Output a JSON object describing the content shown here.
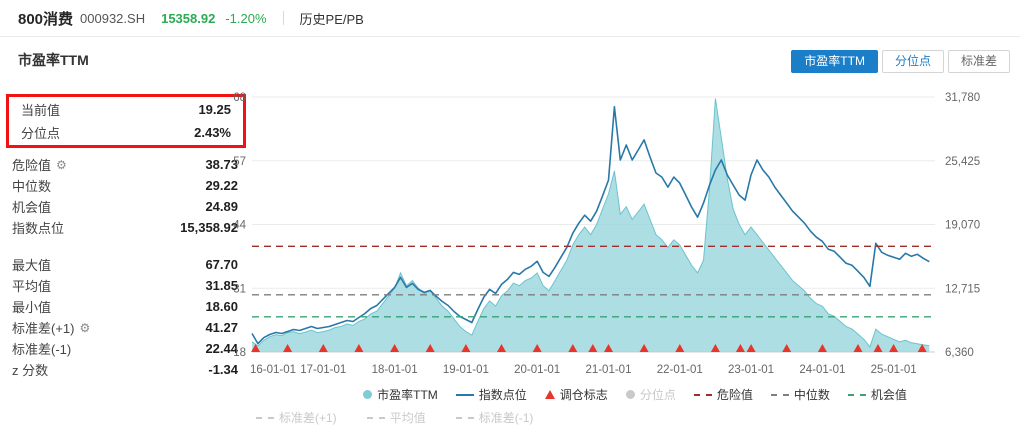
{
  "header": {
    "title": "800消费",
    "code": "000932.SH",
    "price": "15358.92",
    "change": "-1.20%",
    "nav": "历史PE/PB",
    "price_color": "#2bab52"
  },
  "panel": {
    "title": "市盈率TTM",
    "highlight_rows": [
      {
        "label": "当前值",
        "value": "19.25"
      },
      {
        "label": "分位点",
        "value": "2.43%"
      }
    ],
    "rows1": [
      {
        "label": "危险值",
        "value": "38.73"
      },
      {
        "label": "中位数",
        "value": "29.22"
      },
      {
        "label": "机会值",
        "value": "24.89"
      },
      {
        "label": "指数点位",
        "value": "15,358.92"
      }
    ],
    "rows2": [
      {
        "label": "最大值",
        "value": "67.70"
      },
      {
        "label": "平均值",
        "value": "31.85"
      },
      {
        "label": "最小值",
        "value": "18.60"
      },
      {
        "label": "标准差(+1)",
        "value": "41.27"
      },
      {
        "label": "标准差(-1)",
        "value": "22.44"
      },
      {
        "label": "z 分数",
        "value": "-1.34"
      }
    ],
    "highlight_border_color": "#f21212"
  },
  "toggles": [
    {
      "label": "市盈率TTM",
      "active": true
    },
    {
      "label": "分位点",
      "active": false
    },
    {
      "label": "标准差",
      "active": false
    }
  ],
  "chart_data": {
    "type": "line+area",
    "x_start": 2016,
    "x_end": 2025.58,
    "x_step": 0.08333,
    "x_ticks": [
      "16-01-01",
      "17-01-01",
      "18-01-01",
      "19-01-01",
      "20-01-01",
      "21-01-01",
      "22-01-01",
      "23-01-01",
      "24-01-01",
      "25-01-01"
    ],
    "left_axis": {
      "min": 18,
      "max": 68,
      "ticks": [
        "68",
        "57",
        "44",
        "31",
        "18"
      ]
    },
    "right_axis": {
      "min": 6360,
      "max": 31780,
      "ticks": [
        "31,780",
        "25,425",
        "19,070",
        "12,715",
        "6,360"
      ]
    },
    "series": [
      {
        "name": "市盈率TTM",
        "type": "area",
        "axis": "left",
        "color": "#6cc3cd",
        "fill": "rgba(151,214,221,0.8)",
        "values": [
          20,
          19.2,
          20.3,
          21,
          21.4,
          21.2,
          21.8,
          22,
          21.6,
          21.9,
          22.3,
          21.8,
          22,
          22.3,
          22.8,
          23,
          23.5,
          23.2,
          24,
          24.5,
          25.5,
          26,
          27.5,
          29,
          30.5,
          33.5,
          31,
          32,
          30.5,
          29.5,
          30,
          28.5,
          27,
          26,
          24.5,
          23,
          22,
          21.3,
          24,
          26.5,
          28,
          27,
          29,
          30,
          31.5,
          31,
          32,
          32.5,
          33.5,
          31,
          30,
          32,
          34,
          36,
          39,
          41,
          42.5,
          41,
          43,
          46,
          49,
          53.5,
          45,
          46.5,
          44,
          45.5,
          47,
          44,
          41,
          40,
          38.5,
          40,
          39,
          37,
          35,
          33.5,
          36,
          50,
          67.7,
          60,
          52,
          46,
          43,
          41,
          42.5,
          41,
          39.5,
          38,
          36.5,
          35,
          33.5,
          32,
          31,
          30,
          28.5,
          27.5,
          27,
          25.5,
          25,
          24,
          23,
          22.5,
          21.5,
          20.5,
          19,
          22.5,
          21.5,
          21,
          20.5,
          20,
          20.3,
          19.8,
          19.6,
          19.4,
          19.25
        ]
      },
      {
        "name": "指数点位",
        "type": "line",
        "axis": "right",
        "color": "#2878a8",
        "values": [
          8200,
          7200,
          7800,
          8100,
          8300,
          8200,
          8400,
          8600,
          8500,
          8700,
          8900,
          8700,
          8800,
          8900,
          9100,
          9300,
          9500,
          9400,
          9800,
          10200,
          10700,
          11000,
          11600,
          12200,
          12800,
          13800,
          12800,
          13200,
          12600,
          12300,
          12500,
          11900,
          11400,
          11000,
          10400,
          9900,
          9600,
          9300,
          10600,
          11800,
          12600,
          12200,
          13100,
          13600,
          14300,
          14100,
          14600,
          14900,
          15400,
          14300,
          13900,
          14800,
          15800,
          16800,
          18200,
          19200,
          20000,
          19400,
          20400,
          21900,
          23500,
          30800,
          25500,
          27000,
          25500,
          26500,
          27500,
          25800,
          24200,
          23800,
          22800,
          23800,
          23200,
          22000,
          20800,
          19800,
          21200,
          23000,
          24500,
          25500,
          24000,
          23000,
          22000,
          21500,
          24000,
          25500,
          24500,
          23800,
          22800,
          22000,
          21200,
          20400,
          19800,
          19200,
          18400,
          17800,
          17400,
          16600,
          16400,
          15800,
          15200,
          15000,
          14400,
          13800,
          12900,
          17200,
          16300,
          16000,
          15800,
          15600,
          16200,
          15900,
          16100,
          15700,
          15359
        ]
      }
    ],
    "markers": {
      "name": "调仓标志",
      "color": "#e8352b",
      "x": [
        2016.05,
        2016.5,
        2017.0,
        2017.5,
        2018.0,
        2018.5,
        2019.0,
        2019.5,
        2020.0,
        2020.5,
        2020.78,
        2021.0,
        2021.5,
        2022.0,
        2022.5,
        2022.85,
        2023.0,
        2023.5,
        2024.0,
        2024.5,
        2024.78,
        2025.0,
        2025.4
      ]
    },
    "ref_lines": [
      {
        "id": "danger",
        "name": "危险值",
        "value": 38.73,
        "color": "#9c2f2a"
      },
      {
        "id": "median",
        "name": "中位数",
        "value": 29.22,
        "color": "#7f7f7f"
      },
      {
        "id": "opportunity",
        "name": "机会值",
        "value": 24.89,
        "color": "#3aa273"
      }
    ]
  },
  "legend": {
    "row1": [
      {
        "id": "pe-ttm",
        "label": "市盈率TTM",
        "type": "circle",
        "color": "#7fccd4",
        "disabled": false
      },
      {
        "id": "index-points",
        "label": "指数点位",
        "type": "line",
        "color": "#2878a8",
        "disabled": false
      },
      {
        "id": "rebalance-flag",
        "label": "调仓标志",
        "type": "triangle",
        "color": "#e8352b",
        "disabled": false
      },
      {
        "id": "percentile",
        "label": "分位点",
        "type": "circle",
        "color": "#c9c9c9",
        "disabled": true
      },
      {
        "id": "danger",
        "label": "危险值",
        "type": "dash",
        "color": "#9c2f2a",
        "disabled": false
      },
      {
        "id": "median",
        "label": "中位数",
        "type": "dash",
        "color": "#7f7f7f",
        "disabled": false
      },
      {
        "id": "opportunity",
        "label": "机会值",
        "type": "dash",
        "color": "#3aa273",
        "disabled": false
      }
    ],
    "row2": [
      {
        "id": "std-plus1",
        "label": "标准差(+1)",
        "type": "dashdot",
        "color": "#c9c9c9",
        "disabled": true
      },
      {
        "id": "mean",
        "label": "平均值",
        "type": "dashdot",
        "color": "#c9c9c9",
        "disabled": true
      },
      {
        "id": "std-minus1",
        "label": "标准差(-1)",
        "type": "dashdot",
        "color": "#c9c9c9",
        "disabled": true
      }
    ]
  }
}
